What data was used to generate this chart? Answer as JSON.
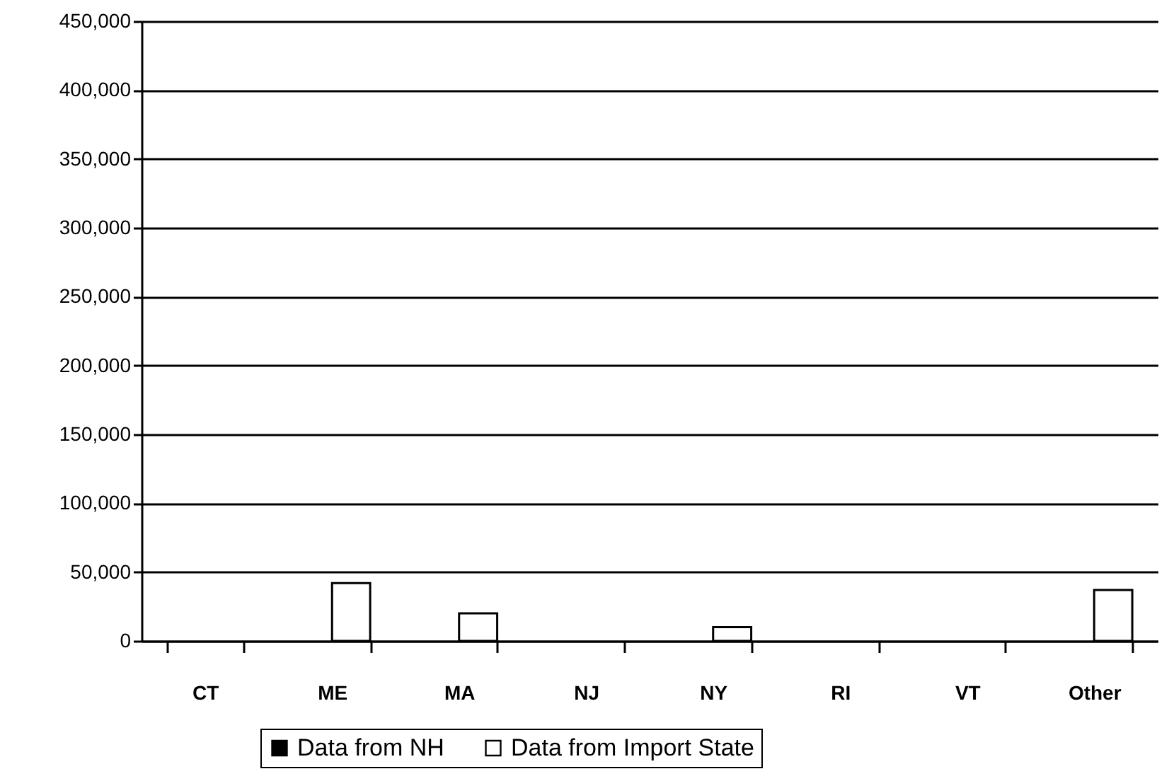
{
  "chart_data": {
    "type": "bar",
    "categories": [
      "CT",
      "ME",
      "MA",
      "NJ",
      "NY",
      "RI",
      "VT",
      "Other"
    ],
    "series": [
      {
        "name": "Data from NH",
        "color": "#000000",
        "values": [
          0,
          0,
          0,
          0,
          0,
          0,
          0,
          0
        ]
      },
      {
        "name": "Data from Import State",
        "color": "#ffffff",
        "values": [
          0,
          42000,
          20000,
          0,
          10000,
          0,
          0,
          37000
        ]
      }
    ],
    "ylim": [
      0,
      450000
    ],
    "yticks": [
      {
        "value": 0,
        "label": "0"
      },
      {
        "value": 50000,
        "label": "50,000"
      },
      {
        "value": 100000,
        "label": "100,000"
      },
      {
        "value": 150000,
        "label": "150,000"
      },
      {
        "value": 200000,
        "label": "200,000"
      },
      {
        "value": 250000,
        "label": "250,000"
      },
      {
        "value": 300000,
        "label": "300,000"
      },
      {
        "value": 350000,
        "label": "350,000"
      },
      {
        "value": 400000,
        "label": "400,000"
      },
      {
        "value": 450000,
        "label": "450,000"
      }
    ],
    "grid": "y",
    "legend": "bottom"
  }
}
